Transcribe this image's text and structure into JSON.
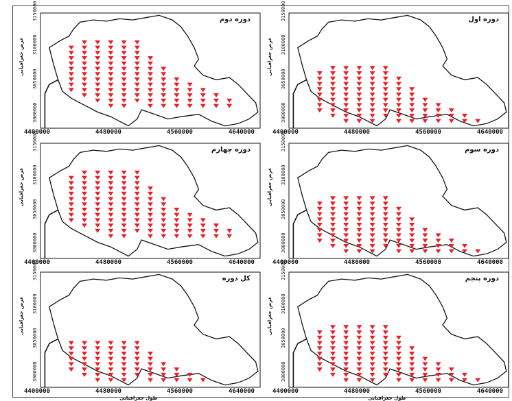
{
  "colors": {
    "marker": "#e8202a",
    "outline": "#111111",
    "frame": "#444444"
  },
  "axis": {
    "x_ticks": [
      "4400000",
      "4480000",
      "4560000",
      "4640000"
    ],
    "y_ticks": [
      "3000000",
      "3050000",
      "3100000",
      "3150000"
    ],
    "x_label": "طول جغرافيایی",
    "y_label": "عرض جغرافیایی"
  },
  "panels": [
    {
      "title": "دوره دوم",
      "extent": "tall"
    },
    {
      "title": "دوره اول",
      "extent": "mid"
    },
    {
      "title": "دوره چهارم",
      "extent": "tall"
    },
    {
      "title": "دوره سوم",
      "extent": "mid"
    },
    {
      "title": "کل دوره",
      "extent": "short"
    },
    {
      "title": "دوره پنجم",
      "extent": "mid"
    }
  ]
}
